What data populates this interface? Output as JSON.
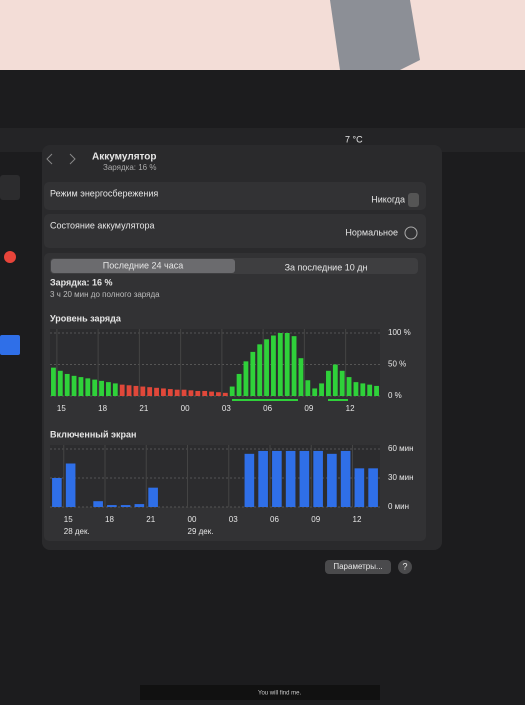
{
  "menubar": {
    "weather": "7 °C"
  },
  "header": {
    "title": "Аккумулятор",
    "subtitle": "Зарядка: 16 %"
  },
  "rows": [
    {
      "label": "Режим энергосбережения",
      "value": "Никогда"
    },
    {
      "label": "Состояние аккумулятора",
      "value": "Нормальное"
    }
  ],
  "tabs": [
    "Последние 24 часа",
    "За последние 10 дн"
  ],
  "status": {
    "charge": "Зарядка: 16 %",
    "eta": "3 ч 20 мин до полного заряда"
  },
  "chart_data": [
    {
      "type": "bar",
      "title": "Уровень заряда",
      "categories": [
        null,
        "15",
        null,
        null,
        null,
        null,
        null,
        "18",
        null,
        null,
        null,
        null,
        null,
        "21",
        null,
        null,
        null,
        null,
        null,
        "00",
        null,
        null,
        null,
        null,
        null,
        "03",
        null,
        null,
        null,
        null,
        null,
        "06",
        null,
        null,
        null,
        null,
        null,
        "09",
        null,
        null,
        null,
        null,
        null,
        "12",
        null,
        null,
        null,
        null
      ],
      "values": [
        45,
        40,
        35,
        32,
        30,
        28,
        26,
        24,
        22,
        20,
        18,
        17,
        16,
        15,
        14,
        13,
        12,
        11,
        10,
        10,
        9,
        8,
        8,
        7,
        6,
        5,
        15,
        35,
        55,
        70,
        82,
        90,
        96,
        100,
        100,
        95,
        60,
        25,
        12,
        20,
        40,
        50,
        40,
        30,
        22,
        20,
        18,
        16
      ],
      "colors": [
        "#2fd13a",
        "#2fd13a",
        "#2fd13a",
        "#2fd13a",
        "#2fd13a",
        "#2fd13a",
        "#2fd13a",
        "#2fd13a",
        "#2fd13a",
        "#2fd13a",
        "#e0483a",
        "#e0483a",
        "#e0483a",
        "#e0483a",
        "#e0483a",
        "#e0483a",
        "#e0483a",
        "#e0483a",
        "#e0483a",
        "#e0483a",
        "#e0483a",
        "#e0483a",
        "#e0483a",
        "#e0483a",
        "#e0483a",
        "#e0483a",
        "#2fd13a",
        "#2fd13a",
        "#2fd13a",
        "#2fd13a",
        "#2fd13a",
        "#2fd13a",
        "#2fd13a",
        "#2fd13a",
        "#2fd13a",
        "#2fd13a",
        "#2fd13a",
        "#2fd13a",
        "#2fd13a",
        "#2fd13a",
        "#2fd13a",
        "#2fd13a",
        "#2fd13a",
        "#2fd13a",
        "#2fd13a",
        "#2fd13a",
        "#2fd13a",
        "#2fd13a"
      ],
      "ylim": [
        0,
        100
      ],
      "yticks": [
        {
          "value": 0,
          "label": "0 %"
        },
        {
          "value": 50,
          "label": "50 %"
        },
        {
          "value": 100,
          "label": "100 %"
        }
      ],
      "grid": true
    },
    {
      "type": "bar",
      "title": "Включенный экран",
      "categories": [
        null,
        "15",
        null,
        null,
        "18",
        null,
        null,
        "21",
        null,
        null,
        "00",
        null,
        null,
        "03",
        null,
        null,
        "06",
        null,
        null,
        "09",
        null,
        null,
        "12",
        null
      ],
      "date_labels": [
        null,
        "28 дек.",
        null,
        null,
        null,
        null,
        null,
        null,
        null,
        null,
        "29 дек.",
        null,
        null,
        null,
        null,
        null,
        null,
        null,
        null,
        null,
        null,
        null,
        null,
        null
      ],
      "values": [
        30,
        45,
        0,
        6,
        2,
        2,
        3,
        20,
        0,
        0,
        0,
        0,
        0,
        0,
        55,
        58,
        58,
        58,
        58,
        58,
        55,
        58,
        40,
        40
      ],
      "color": "#2f6fe8",
      "ylim": [
        0,
        60
      ],
      "yticks": [
        {
          "value": 0,
          "label": "0 мин"
        },
        {
          "value": 30,
          "label": "30 мин"
        },
        {
          "value": 60,
          "label": "60 мин"
        }
      ],
      "grid": true
    }
  ],
  "footer": {
    "button": "Параметры...",
    "help": "?",
    "caption": "You will find me."
  }
}
